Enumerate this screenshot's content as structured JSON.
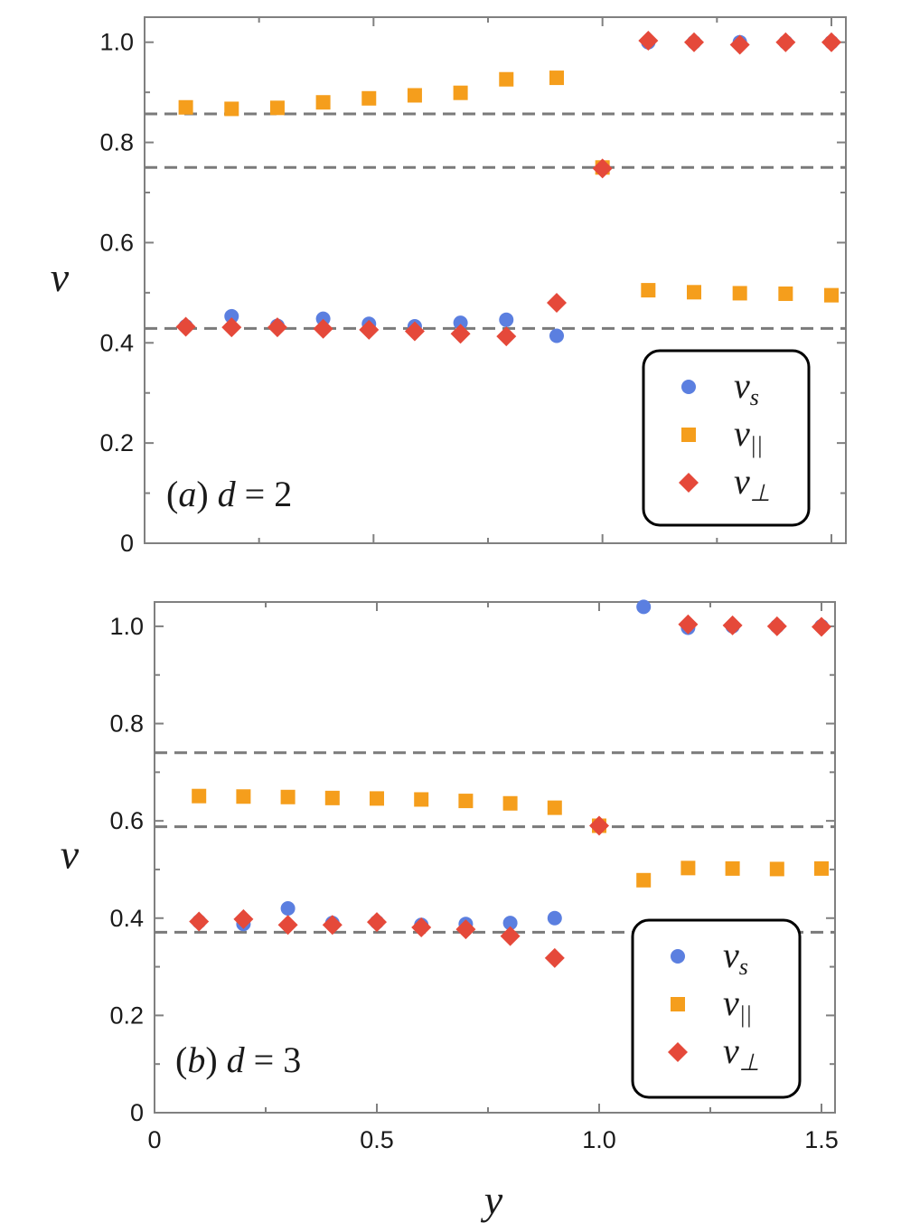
{
  "figure": {
    "xlabel": "y"
  },
  "chart_data": [
    {
      "type": "scatter",
      "panel_label": "(a) d = 2",
      "panel_label_parts": {
        "open": "(",
        "letter": "a",
        "close": ")",
        "var": "d",
        "eq": " = ",
        "val": "2"
      },
      "ylabel": "ν",
      "xlim": [
        0,
        1.52
      ],
      "ylim": [
        0,
        1.05
      ],
      "xticks": [
        0,
        0.5,
        1.0,
        1.5
      ],
      "xtick_labels": [
        "",
        "",
        "",
        ""
      ],
      "yticks": [
        0,
        0.2,
        0.4,
        0.6,
        0.8,
        1.0
      ],
      "ytick_labels": [
        "0",
        "0.2",
        "0.4",
        "0.6",
        "0.8",
        "1.0"
      ],
      "hlines": [
        0.857,
        0.75,
        0.4286
      ],
      "legend_position": "bottom-right",
      "series": [
        {
          "name": "ν_s",
          "label_main": "ν",
          "label_sub": "s",
          "marker": "circle",
          "color": "#5b7fe0",
          "x": [
            0.09,
            0.19,
            0.29,
            0.39,
            0.49,
            0.59,
            0.69,
            0.79,
            0.9,
            1.0,
            1.1,
            1.2,
            1.3,
            1.4,
            1.5
          ],
          "y": [
            0.433,
            0.453,
            0.434,
            0.448,
            0.438,
            0.433,
            0.44,
            0.446,
            0.414,
            0.75,
            1.0,
            1.0,
            1.0,
            1.0,
            1.0
          ]
        },
        {
          "name": "ν_∥",
          "label_main": "ν",
          "label_sub": "||",
          "marker": "square",
          "color": "#f59e1c",
          "x": [
            0.09,
            0.19,
            0.29,
            0.39,
            0.49,
            0.59,
            0.69,
            0.79,
            0.9,
            1.0,
            1.1,
            1.2,
            1.3,
            1.4,
            1.5
          ],
          "y": [
            0.87,
            0.867,
            0.869,
            0.88,
            0.888,
            0.894,
            0.899,
            0.926,
            0.929,
            0.75,
            0.505,
            0.501,
            0.499,
            0.498,
            0.495
          ]
        },
        {
          "name": "ν_⊥",
          "label_main": "ν",
          "label_sub": "⊥",
          "marker": "diamond",
          "color": "#e5493a",
          "x": [
            0.09,
            0.19,
            0.29,
            0.39,
            0.49,
            0.59,
            0.69,
            0.79,
            0.9,
            1.0,
            1.1,
            1.2,
            1.3,
            1.4,
            1.5
          ],
          "y": [
            0.432,
            0.431,
            0.431,
            0.428,
            0.426,
            0.423,
            0.418,
            0.413,
            0.48,
            0.748,
            1.003,
            1.0,
            0.995,
            1.0,
            1.0
          ]
        }
      ]
    },
    {
      "type": "scatter",
      "panel_label": "(b) d = 3",
      "panel_label_parts": {
        "open": "(",
        "letter": "b",
        "close": ")",
        "var": "d",
        "eq": " = ",
        "val": "3"
      },
      "ylabel": "ν",
      "xlim": [
        0,
        1.52
      ],
      "ylim": [
        0,
        1.05
      ],
      "xticks": [
        0,
        0.5,
        1.0,
        1.5
      ],
      "xtick_labels": [
        "0",
        "0.5",
        "1.0",
        "1.5"
      ],
      "yticks": [
        0,
        0.2,
        0.4,
        0.6,
        0.8,
        1.0
      ],
      "ytick_labels": [
        "0",
        "0.2",
        "0.4",
        "0.6",
        "0.8",
        "1.0"
      ],
      "hlines": [
        0.74,
        0.588,
        0.371
      ],
      "legend_position": "bottom-right",
      "series": [
        {
          "name": "ν_s",
          "label_main": "ν",
          "label_sub": "s",
          "marker": "circle",
          "color": "#5b7fe0",
          "x": [
            0.1,
            0.2,
            0.3,
            0.4,
            0.5,
            0.6,
            0.7,
            0.8,
            0.9,
            1.0,
            1.1,
            1.2,
            1.3,
            1.4,
            1.5
          ],
          "y": [
            0.393,
            0.388,
            0.42,
            0.39,
            0.392,
            0.386,
            0.388,
            0.39,
            0.4,
            0.59,
            1.04,
            0.997,
            1.0,
            1.0,
            1.0
          ]
        },
        {
          "name": "ν_∥",
          "label_main": "ν",
          "label_sub": "||",
          "marker": "square",
          "color": "#f59e1c",
          "x": [
            0.1,
            0.2,
            0.3,
            0.4,
            0.5,
            0.6,
            0.7,
            0.8,
            0.9,
            1.0,
            1.1,
            1.2,
            1.3,
            1.4,
            1.5
          ],
          "y": [
            0.651,
            0.65,
            0.649,
            0.647,
            0.646,
            0.644,
            0.641,
            0.636,
            0.627,
            0.59,
            0.478,
            0.503,
            0.502,
            0.501,
            0.502
          ]
        },
        {
          "name": "ν_⊥",
          "label_main": "ν",
          "label_sub": "⊥",
          "marker": "diamond",
          "color": "#e5493a",
          "x": [
            0.1,
            0.2,
            0.3,
            0.4,
            0.5,
            0.6,
            0.7,
            0.8,
            0.9,
            1.0,
            1.1,
            1.2,
            1.3,
            1.4,
            1.5
          ],
          "y": [
            0.393,
            0.398,
            0.386,
            0.386,
            0.392,
            0.381,
            0.377,
            0.363,
            0.318,
            0.59,
            null,
            1.004,
            1.002,
            1.0,
            0.999
          ]
        }
      ]
    }
  ]
}
